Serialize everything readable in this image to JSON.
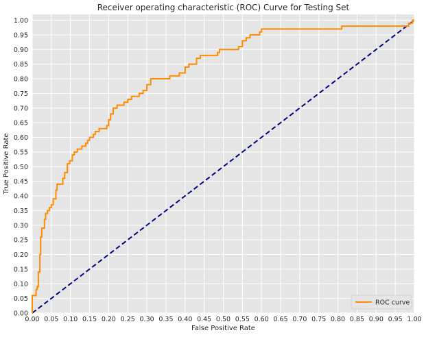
{
  "chart_data": {
    "type": "line",
    "title": "Receiver operating characteristic (ROC) Curve for Testing Set",
    "xlabel": "False Positive Rate",
    "ylabel": "True Positive Rate",
    "xlim": [
      0,
      1
    ],
    "ylim": [
      0,
      1.02
    ],
    "xticks": [
      "0.00",
      "0.05",
      "0.10",
      "0.15",
      "0.20",
      "0.25",
      "0.30",
      "0.35",
      "0.40",
      "0.45",
      "0.50",
      "0.55",
      "0.60",
      "0.65",
      "0.70",
      "0.75",
      "0.80",
      "0.85",
      "0.90",
      "0.95",
      "1.00"
    ],
    "yticks": [
      "0.00",
      "0.05",
      "0.10",
      "0.15",
      "0.20",
      "0.25",
      "0.30",
      "0.35",
      "0.40",
      "0.45",
      "0.50",
      "0.55",
      "0.60",
      "0.65",
      "0.70",
      "0.75",
      "0.80",
      "0.85",
      "0.90",
      "0.95",
      "1.00"
    ],
    "grid": true,
    "legend_position": "lower-right",
    "background_color": "#e5e5e5",
    "series": [
      {
        "name": "ROC curve",
        "color": "#ff8c00",
        "style": "step",
        "points": [
          [
            0.0,
            0.0
          ],
          [
            0.0,
            0.06
          ],
          [
            0.01,
            0.06
          ],
          [
            0.01,
            0.08
          ],
          [
            0.013,
            0.08
          ],
          [
            0.013,
            0.09
          ],
          [
            0.016,
            0.09
          ],
          [
            0.016,
            0.14
          ],
          [
            0.02,
            0.14
          ],
          [
            0.02,
            0.2
          ],
          [
            0.022,
            0.2
          ],
          [
            0.022,
            0.26
          ],
          [
            0.025,
            0.26
          ],
          [
            0.025,
            0.29
          ],
          [
            0.032,
            0.29
          ],
          [
            0.032,
            0.32
          ],
          [
            0.035,
            0.32
          ],
          [
            0.035,
            0.34
          ],
          [
            0.04,
            0.34
          ],
          [
            0.04,
            0.35
          ],
          [
            0.045,
            0.35
          ],
          [
            0.045,
            0.36
          ],
          [
            0.05,
            0.36
          ],
          [
            0.05,
            0.37
          ],
          [
            0.055,
            0.37
          ],
          [
            0.055,
            0.39
          ],
          [
            0.062,
            0.39
          ],
          [
            0.062,
            0.42
          ],
          [
            0.065,
            0.42
          ],
          [
            0.065,
            0.44
          ],
          [
            0.08,
            0.44
          ],
          [
            0.08,
            0.46
          ],
          [
            0.085,
            0.46
          ],
          [
            0.085,
            0.48
          ],
          [
            0.092,
            0.48
          ],
          [
            0.092,
            0.51
          ],
          [
            0.098,
            0.51
          ],
          [
            0.098,
            0.52
          ],
          [
            0.105,
            0.52
          ],
          [
            0.105,
            0.54
          ],
          [
            0.11,
            0.54
          ],
          [
            0.11,
            0.55
          ],
          [
            0.118,
            0.55
          ],
          [
            0.118,
            0.56
          ],
          [
            0.13,
            0.56
          ],
          [
            0.13,
            0.57
          ],
          [
            0.14,
            0.57
          ],
          [
            0.14,
            0.58
          ],
          [
            0.145,
            0.58
          ],
          [
            0.145,
            0.59
          ],
          [
            0.15,
            0.59
          ],
          [
            0.15,
            0.6
          ],
          [
            0.16,
            0.6
          ],
          [
            0.16,
            0.61
          ],
          [
            0.165,
            0.61
          ],
          [
            0.165,
            0.62
          ],
          [
            0.175,
            0.62
          ],
          [
            0.175,
            0.63
          ],
          [
            0.195,
            0.63
          ],
          [
            0.195,
            0.64
          ],
          [
            0.2,
            0.64
          ],
          [
            0.2,
            0.66
          ],
          [
            0.205,
            0.66
          ],
          [
            0.205,
            0.68
          ],
          [
            0.212,
            0.68
          ],
          [
            0.212,
            0.7
          ],
          [
            0.222,
            0.7
          ],
          [
            0.222,
            0.71
          ],
          [
            0.24,
            0.71
          ],
          [
            0.24,
            0.72
          ],
          [
            0.25,
            0.72
          ],
          [
            0.25,
            0.73
          ],
          [
            0.26,
            0.73
          ],
          [
            0.26,
            0.74
          ],
          [
            0.28,
            0.74
          ],
          [
            0.28,
            0.75
          ],
          [
            0.29,
            0.75
          ],
          [
            0.29,
            0.76
          ],
          [
            0.3,
            0.76
          ],
          [
            0.3,
            0.78
          ],
          [
            0.31,
            0.78
          ],
          [
            0.31,
            0.8
          ],
          [
            0.36,
            0.8
          ],
          [
            0.36,
            0.81
          ],
          [
            0.385,
            0.81
          ],
          [
            0.385,
            0.82
          ],
          [
            0.4,
            0.82
          ],
          [
            0.4,
            0.84
          ],
          [
            0.41,
            0.84
          ],
          [
            0.41,
            0.85
          ],
          [
            0.43,
            0.85
          ],
          [
            0.43,
            0.87
          ],
          [
            0.44,
            0.87
          ],
          [
            0.44,
            0.88
          ],
          [
            0.485,
            0.88
          ],
          [
            0.485,
            0.89
          ],
          [
            0.49,
            0.89
          ],
          [
            0.49,
            0.9
          ],
          [
            0.54,
            0.9
          ],
          [
            0.54,
            0.91
          ],
          [
            0.55,
            0.91
          ],
          [
            0.55,
            0.93
          ],
          [
            0.56,
            0.93
          ],
          [
            0.56,
            0.94
          ],
          [
            0.57,
            0.94
          ],
          [
            0.57,
            0.95
          ],
          [
            0.595,
            0.95
          ],
          [
            0.595,
            0.96
          ],
          [
            0.6,
            0.96
          ],
          [
            0.6,
            0.97
          ],
          [
            0.81,
            0.97
          ],
          [
            0.81,
            0.98
          ],
          [
            0.985,
            0.98
          ],
          [
            0.985,
            0.99
          ],
          [
            0.995,
            0.99
          ],
          [
            0.995,
            1.0
          ],
          [
            1.0,
            1.0
          ]
        ]
      },
      {
        "color": "#000080",
        "style": "dashed",
        "points": [
          [
            0,
            0
          ],
          [
            1,
            1
          ]
        ]
      }
    ]
  }
}
